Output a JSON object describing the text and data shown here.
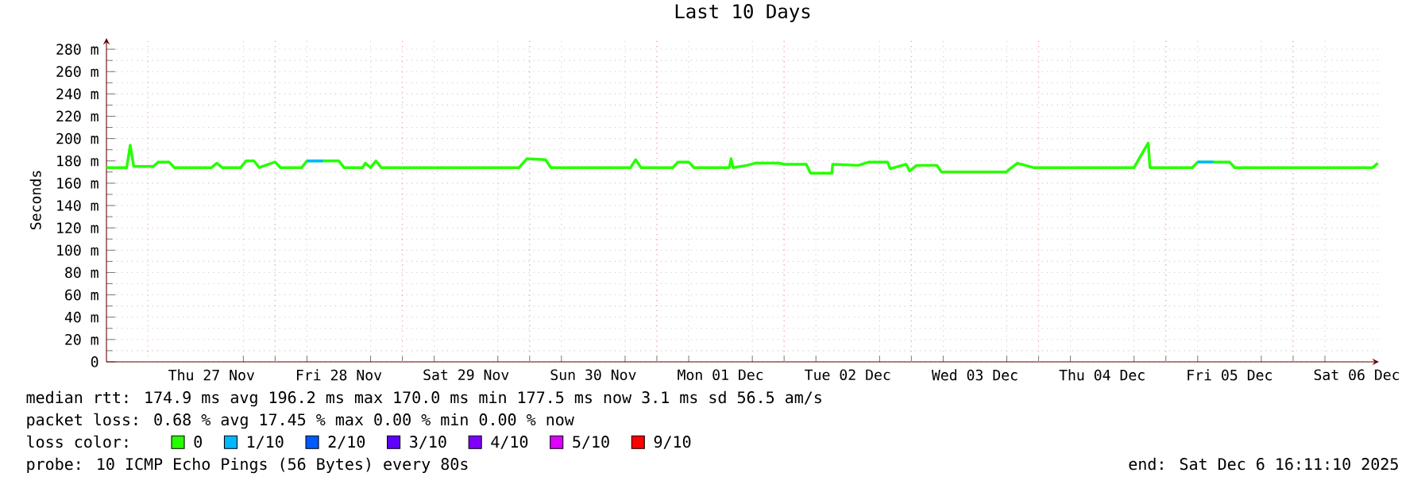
{
  "chart_data": {
    "type": "line",
    "title": "Last 10 Days",
    "ylabel": "Seconds",
    "legend_title": "loss color:",
    "legend": "bottom",
    "grid": true,
    "xlim": [
      "2025-11-26T16:11",
      "2025-12-06T16:11"
    ],
    "xticks": [
      {
        "value": "2025-11-27T12:00",
        "label": "Thu 27 Nov"
      },
      {
        "value": "2025-11-28T12:00",
        "label": "Fri 28 Nov"
      },
      {
        "value": "2025-11-29T12:00",
        "label": "Sat 29 Nov"
      },
      {
        "value": "2025-11-30T12:00",
        "label": "Sun 30 Nov"
      },
      {
        "value": "2025-12-01T12:00",
        "label": "Mon 01 Dec"
      },
      {
        "value": "2025-12-02T12:00",
        "label": "Tue 02 Dec"
      },
      {
        "value": "2025-12-03T12:00",
        "label": "Wed 03 Dec"
      },
      {
        "value": "2025-12-04T12:00",
        "label": "Thu 04 Dec"
      },
      {
        "value": "2025-12-05T12:00",
        "label": "Fri 05 Dec"
      },
      {
        "value": "2025-12-06T12:00",
        "label": "Sat 06 Dec"
      },
      {
        "value": "2025-11-27T00:00",
        "label": null
      },
      {
        "value": "2025-11-28T00:00",
        "label": null
      },
      {
        "value": "2025-11-29T00:00",
        "label": null
      },
      {
        "value": "2025-11-30T00:00",
        "label": null
      },
      {
        "value": "2025-12-01T00:00",
        "label": null
      },
      {
        "value": "2025-12-02T00:00",
        "label": null
      },
      {
        "value": "2025-12-03T00:00",
        "label": null
      },
      {
        "value": "2025-12-04T00:00",
        "label": null
      },
      {
        "value": "2025-12-05T00:00",
        "label": null
      },
      {
        "value": "2025-12-06T00:00",
        "label": null
      }
    ],
    "ylim": [
      0,
      290
    ],
    "yticks": [
      0,
      {
        "value": 20,
        "label": "20 m"
      },
      {
        "value": 40,
        "label": "40 m"
      },
      {
        "value": 60,
        "label": "60 m"
      },
      {
        "value": 80,
        "label": "80 m"
      },
      {
        "value": 100,
        "label": "100 m"
      },
      {
        "value": 120,
        "label": "120 m"
      },
      {
        "value": 140,
        "label": "140 m"
      },
      {
        "value": 160,
        "label": "160 m"
      },
      {
        "value": 180,
        "label": "180 m"
      },
      {
        "value": 200,
        "label": "200 m"
      },
      {
        "value": 220,
        "label": "220 m"
      },
      {
        "value": 240,
        "label": "240 m"
      },
      {
        "value": 260,
        "label": "260 m"
      },
      {
        "value": 280,
        "label": "280 m"
      }
    ],
    "series": [
      {
        "name": "0",
        "color": "#26ff00",
        "x": [
          "2025-11-26T16:11",
          "2025-11-26T20:00",
          "2025-11-26T20:40",
          "2025-11-26T21:20",
          "2025-11-27T01:00",
          "2025-11-27T02:00",
          "2025-11-27T04:00",
          "2025-11-27T05:00",
          "2025-11-27T12:00",
          "2025-11-27T13:00",
          "2025-11-27T14:00",
          "2025-11-27T17:30",
          "2025-11-27T18:30",
          "2025-11-27T20:00",
          "2025-11-27T21:00",
          "2025-11-28T00:00",
          "2025-11-28T01:00",
          "2025-11-28T05:00",
          "2025-11-28T06:00",
          "2025-11-28T12:00",
          "2025-11-28T13:00",
          "2025-11-28T16:30",
          "2025-11-28T17:00",
          "2025-11-28T18:00",
          "2025-11-28T19:00",
          "2025-11-28T20:00",
          "2025-11-29T22:00",
          "2025-11-29T23:30",
          "2025-11-30T03:00",
          "2025-11-30T04:00",
          "2025-11-30T19:00",
          "2025-11-30T20:00",
          "2025-11-30T21:00",
          "2025-12-01T03:00",
          "2025-12-01T04:00",
          "2025-12-01T06:00",
          "2025-12-01T07:00",
          "2025-12-01T13:40",
          "2025-12-01T14:00",
          "2025-12-01T14:20",
          "2025-12-01T17:00",
          "2025-12-01T18:30",
          "2025-12-01T23:00",
          "2025-12-02T00:00",
          "2025-12-02T04:10",
          "2025-12-02T05:00",
          "2025-12-02T09:00",
          "2025-12-02T09:10",
          "2025-12-02T14:00",
          "2025-12-02T16:00",
          "2025-12-02T19:30",
          "2025-12-02T20:00",
          "2025-12-02T23:00",
          "2025-12-02T23:40",
          "2025-12-03T01:00",
          "2025-12-03T04:50",
          "2025-12-03T05:40",
          "2025-12-03T17:50",
          "2025-12-03T20:00",
          "2025-12-03T23:00",
          "2025-12-04T18:00",
          "2025-12-04T20:40",
          "2025-12-04T21:00",
          "2025-12-05T05:00",
          "2025-12-05T06:00",
          "2025-12-05T12:00",
          "2025-12-05T13:00",
          "2025-12-06T15:00",
          "2025-12-06T16:00"
        ],
        "values": [
          174,
          174,
          194,
          175,
          175,
          179,
          179,
          174,
          174,
          178,
          174,
          174,
          180,
          180,
          174,
          179,
          174,
          174,
          180,
          180,
          174,
          174,
          178,
          174,
          180,
          174,
          174,
          182,
          181,
          174,
          174,
          181,
          174,
          174,
          179,
          179,
          174,
          174,
          182,
          174,
          176,
          178,
          178,
          177,
          177,
          169,
          169,
          177,
          176,
          179,
          179,
          173,
          177,
          171,
          176,
          176,
          170,
          170,
          178,
          174,
          174,
          196,
          174,
          174,
          179,
          179,
          174,
          174,
          178
        ]
      },
      {
        "name": "1/10",
        "color": "#00b8ff",
        "x": [
          "2025-11-28T06:00",
          "2025-11-28T09:00",
          "2025-11-30T00:00",
          "2025-12-05T06:00",
          "2025-12-05T09:00"
        ],
        "values": [
          180,
          180,
          null,
          179,
          179
        ]
      },
      {
        "name": "2/10",
        "color": "#0059ff"
      },
      {
        "name": "3/10",
        "color": "#5e00ff"
      },
      {
        "name": "4/10",
        "color": "#7e00ff"
      },
      {
        "name": "5/10",
        "color": "#dd00ff"
      },
      {
        "name": "9/10",
        "color": "#ff0000"
      }
    ],
    "annotations": [
      "median rtt: 174.9 ms avg 196.2 ms max 170.0 ms min 177.5 ms now 3.1 ms sd 56.5 am/s",
      "packet loss: 0.68 % avg 17.45 % max 0.00 % min 0.00 % now",
      "probe: 10 ICMP Echo Pings (56 Bytes) every 80s",
      "end: Sat Dec 6 16:11:10 2025"
    ]
  }
}
